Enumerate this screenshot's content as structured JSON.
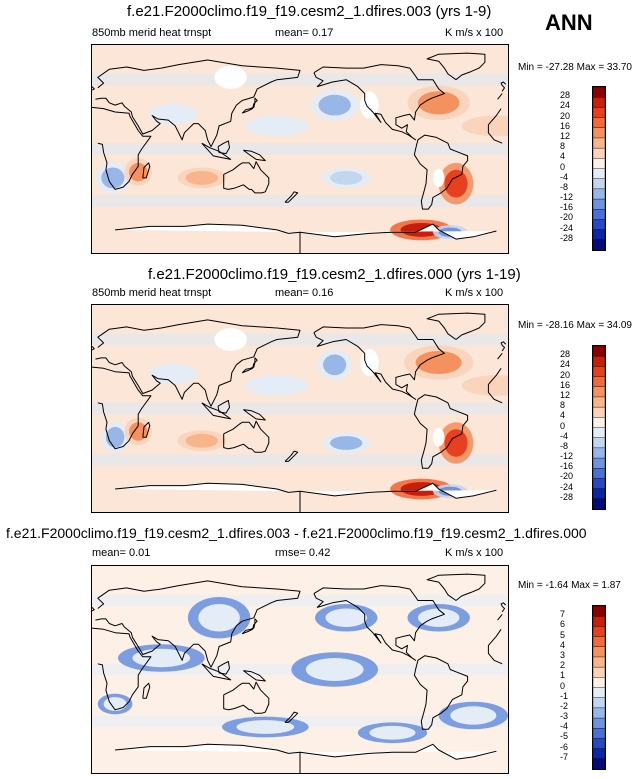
{
  "season": "ANN",
  "chart_data": [
    {
      "type": "heatmap",
      "title": "f.e21.F2000climo.f19_f19.cesm2_1.dfires.003 (yrs 1-9)",
      "variable": "850mb merid heat trnspt",
      "stat_left": "mean=   0.17",
      "units": "K m/s x 100",
      "minmax": "Min = -27.28 Max =  33.70",
      "min": -27.28,
      "max": 33.7,
      "mean": 0.17,
      "colorbar_levels": [
        "28",
        "24",
        "20",
        "16",
        "12",
        "8",
        "4",
        "0",
        "-4",
        "-8",
        "-12",
        "-16",
        "-20",
        "-24",
        "-28"
      ],
      "colorbar_colors": [
        "#8b0000",
        "#c81e0a",
        "#e6401e",
        "#f26a3c",
        "#f5905f",
        "#f8b48a",
        "#fad3ba",
        "#fdf0e6",
        "#e3ecf7",
        "#c3d6f0",
        "#98b6e8",
        "#6f93e0",
        "#4a6fd6",
        "#2848c4",
        "#0e24a6",
        "#040a7a"
      ],
      "blobs": [
        {
          "lon": 120,
          "lat": 62,
          "rx": 14,
          "ry": 10,
          "level": 0
        },
        {
          "lon": -150,
          "lat": 38,
          "rx": 14,
          "ry": 9,
          "level": -12
        },
        {
          "lon": -120,
          "lat": 38,
          "rx": 8,
          "ry": 12,
          "level": 0
        },
        {
          "lon": -60,
          "lat": 40,
          "rx": 18,
          "ry": 10,
          "level": 12
        },
        {
          "lon": 18,
          "lat": -25,
          "rx": 10,
          "ry": 9,
          "level": -12
        },
        {
          "lon": 40,
          "lat": -20,
          "rx": 8,
          "ry": 8,
          "level": 12
        },
        {
          "lon": -45,
          "lat": -30,
          "rx": 10,
          "ry": 12,
          "level": 20
        },
        {
          "lon": -60,
          "lat": -25,
          "rx": 5,
          "ry": 8,
          "level": 0
        },
        {
          "lon": -140,
          "lat": -25,
          "rx": 14,
          "ry": 6,
          "level": -8
        },
        {
          "lon": 95,
          "lat": -25,
          "rx": 14,
          "ry": 6,
          "level": 8
        },
        {
          "lon": -75,
          "lat": -70,
          "rx": 18,
          "ry": 6,
          "level": 24
        },
        {
          "lon": -50,
          "lat": -72,
          "rx": 10,
          "ry": 4,
          "level": -16
        },
        {
          "lon": 160,
          "lat": 20,
          "rx": 18,
          "ry": 6,
          "level": -4
        },
        {
          "lon": -10,
          "lat": 20,
          "rx": 20,
          "ry": 6,
          "level": 4
        },
        {
          "lon": 70,
          "lat": 30,
          "rx": 14,
          "ry": 6,
          "level": -4
        }
      ]
    },
    {
      "type": "heatmap",
      "title": "f.e21.F2000climo.f19_f19.cesm2_1.dfires.000 (yrs 1-19)",
      "variable": "850mb merid heat trnspt",
      "stat_left": "mean=   0.16",
      "units": "K m/s x 100",
      "minmax": "Min = -28.16 Max =  34.09",
      "min": -28.16,
      "max": 34.09,
      "mean": 0.16,
      "colorbar_levels": [
        "28",
        "24",
        "20",
        "16",
        "12",
        "8",
        "4",
        "0",
        "-4",
        "-8",
        "-12",
        "-16",
        "-20",
        "-24",
        "-28"
      ],
      "colorbar_colors": [
        "#8b0000",
        "#c81e0a",
        "#e6401e",
        "#f26a3c",
        "#f5905f",
        "#f8b48a",
        "#fad3ba",
        "#fdf0e6",
        "#e3ecf7",
        "#c3d6f0",
        "#98b6e8",
        "#6f93e0",
        "#4a6fd6",
        "#2848c4",
        "#0e24a6",
        "#040a7a"
      ],
      "blobs": [
        {
          "lon": 120,
          "lat": 60,
          "rx": 14,
          "ry": 10,
          "level": 0
        },
        {
          "lon": -150,
          "lat": 38,
          "rx": 10,
          "ry": 9,
          "level": -12
        },
        {
          "lon": -120,
          "lat": 40,
          "rx": 8,
          "ry": 12,
          "level": 0
        },
        {
          "lon": -60,
          "lat": 40,
          "rx": 20,
          "ry": 10,
          "level": 12
        },
        {
          "lon": 20,
          "lat": -25,
          "rx": 8,
          "ry": 9,
          "level": -12
        },
        {
          "lon": 40,
          "lat": -20,
          "rx": 8,
          "ry": 8,
          "level": 12
        },
        {
          "lon": -45,
          "lat": -30,
          "rx": 10,
          "ry": 12,
          "level": 20
        },
        {
          "lon": -60,
          "lat": -25,
          "rx": 5,
          "ry": 8,
          "level": 0
        },
        {
          "lon": -140,
          "lat": -30,
          "rx": 14,
          "ry": 6,
          "level": -12
        },
        {
          "lon": 95,
          "lat": -28,
          "rx": 14,
          "ry": 6,
          "level": 8
        },
        {
          "lon": -75,
          "lat": -70,
          "rx": 18,
          "ry": 6,
          "level": 24
        },
        {
          "lon": -50,
          "lat": -72,
          "rx": 10,
          "ry": 4,
          "level": -16
        },
        {
          "lon": 160,
          "lat": 20,
          "rx": 18,
          "ry": 6,
          "level": -4
        },
        {
          "lon": -10,
          "lat": 20,
          "rx": 20,
          "ry": 6,
          "level": 4
        },
        {
          "lon": 70,
          "lat": 30,
          "rx": 14,
          "ry": 6,
          "level": -4
        }
      ]
    },
    {
      "type": "heatmap",
      "title": "f.e21.F2000climo.f19_f19.cesm2_1.dfires.003 - f.e21.F2000climo.f19_f19.cesm2_1.dfires.000",
      "variable": "",
      "stat_left": "mean=   0.01",
      "stat_mid": "rmse=   0.42",
      "units": "K m/s x 100",
      "minmax": "Min =  -1.64 Max =   1.87",
      "min": -1.64,
      "max": 1.87,
      "mean": 0.01,
      "rmse": 0.42,
      "colorbar_levels": [
        "7",
        "6",
        "5",
        "4",
        "3",
        "2",
        "1",
        "0",
        "-1",
        "-2",
        "-3",
        "-4",
        "-5",
        "-6",
        "-7"
      ],
      "colorbar_colors": [
        "#8b0000",
        "#c81e0a",
        "#e6401e",
        "#f26a3c",
        "#f5905f",
        "#f8b48a",
        "#fad3ba",
        "#fdf0e6",
        "#e3ecf7",
        "#c3d6f0",
        "#98b6e8",
        "#6f93e0",
        "#4a6fd6",
        "#2848c4",
        "#0e24a6",
        "#040a7a"
      ],
      "blobs": [
        {
          "lon": 110,
          "lat": 45,
          "rx": 18,
          "ry": 12,
          "level": -1
        },
        {
          "lon": -140,
          "lat": 45,
          "rx": 18,
          "ry": 8,
          "level": -1
        },
        {
          "lon": -60,
          "lat": 45,
          "rx": 18,
          "ry": 8,
          "level": -1
        },
        {
          "lon": 60,
          "lat": 10,
          "rx": 25,
          "ry": 8,
          "level": -1
        },
        {
          "lon": -150,
          "lat": 0,
          "rx": 25,
          "ry": 10,
          "level": -1
        },
        {
          "lon": -30,
          "lat": -40,
          "rx": 20,
          "ry": 8,
          "level": -1
        },
        {
          "lon": 150,
          "lat": -50,
          "rx": 25,
          "ry": 6,
          "level": -1
        },
        {
          "lon": 20,
          "lat": -30,
          "rx": 10,
          "ry": 6,
          "level": -1
        },
        {
          "lon": -100,
          "lat": -55,
          "rx": 20,
          "ry": 6,
          "level": -1
        }
      ]
    }
  ]
}
